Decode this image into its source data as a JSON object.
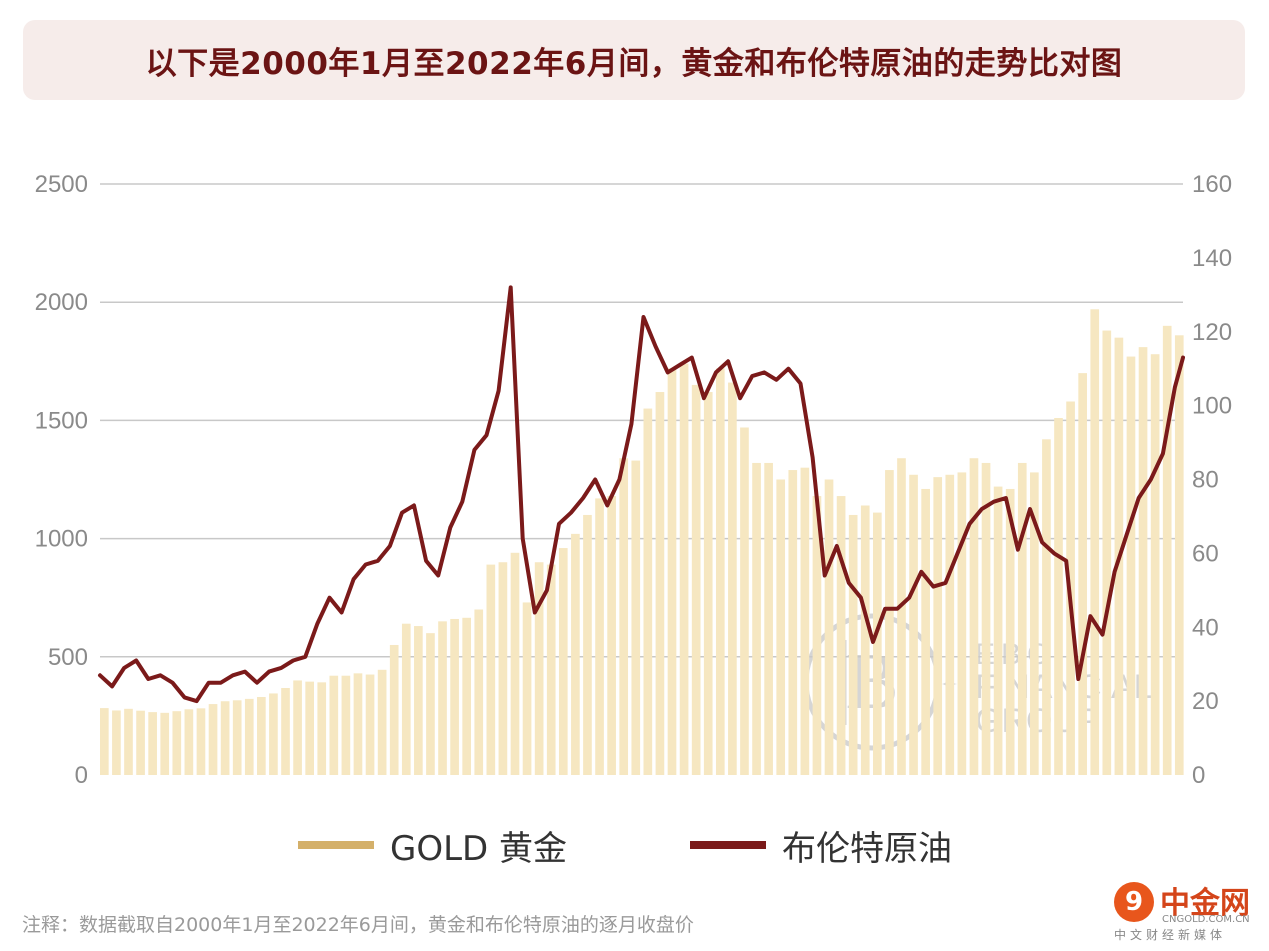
{
  "title": "以下是2000年1月至2022年6月间，黄金和布伦特原油的走势比对图",
  "note": "注释：数据截取自2000年1月至2022年6月间，黄金和布伦特原油的逐月收盘价",
  "watermark": {
    "line1": "EBC",
    "line2": "FINANCIAL",
    "line3": "GROUP"
  },
  "site_logo": {
    "name": "中金网",
    "url": "CNGOLD.COM.CN",
    "tagline": "中文财经新媒体"
  },
  "colors": {
    "gold": "#f6e7c1",
    "gold_legend": "#d4b06a",
    "oil": "#7b1a1a",
    "grid": "#c8c8c8",
    "tick": "#8a8a8a"
  },
  "chart_data": {
    "type": "bar+line",
    "xlim": [
      "2000-01",
      "2022-06"
    ],
    "y_left": {
      "ylim": [
        0,
        2500
      ],
      "ticks": [
        "0",
        "500",
        "1000",
        "1500",
        "2000",
        "2500"
      ]
    },
    "y_right": {
      "ylim": [
        0,
        160
      ],
      "ticks": [
        "0",
        "20",
        "40",
        "60",
        "80",
        "100",
        "120",
        "140",
        "160"
      ]
    },
    "grid": true,
    "legend": {
      "position": "bottom",
      "entries": [
        "GOLD 黄金",
        "布伦特原油"
      ]
    },
    "series": [
      {
        "name": "GOLD 黄金",
        "type": "bar",
        "axis": "left",
        "color": "#f6e7c1",
        "x": [
          "2000-01",
          "2000-04",
          "2000-07",
          "2000-10",
          "2001-01",
          "2001-04",
          "2001-07",
          "2001-10",
          "2002-01",
          "2002-04",
          "2002-07",
          "2002-10",
          "2003-01",
          "2003-04",
          "2003-07",
          "2003-10",
          "2004-01",
          "2004-04",
          "2004-07",
          "2004-10",
          "2005-01",
          "2005-04",
          "2005-07",
          "2005-10",
          "2006-01",
          "2006-04",
          "2006-07",
          "2006-10",
          "2007-01",
          "2007-04",
          "2007-07",
          "2007-10",
          "2008-01",
          "2008-04",
          "2008-07",
          "2008-10",
          "2009-01",
          "2009-04",
          "2009-07",
          "2009-10",
          "2010-01",
          "2010-04",
          "2010-07",
          "2010-10",
          "2011-01",
          "2011-04",
          "2011-07",
          "2011-10",
          "2012-01",
          "2012-04",
          "2012-07",
          "2012-10",
          "2013-01",
          "2013-04",
          "2013-07",
          "2013-10",
          "2014-01",
          "2014-04",
          "2014-07",
          "2014-10",
          "2015-01",
          "2015-04",
          "2015-07",
          "2015-10",
          "2016-01",
          "2016-04",
          "2016-07",
          "2016-10",
          "2017-01",
          "2017-04",
          "2017-07",
          "2017-10",
          "2018-01",
          "2018-04",
          "2018-07",
          "2018-10",
          "2019-01",
          "2019-04",
          "2019-07",
          "2019-10",
          "2020-01",
          "2020-04",
          "2020-07",
          "2020-10",
          "2021-01",
          "2021-04",
          "2021-07",
          "2021-10",
          "2022-01",
          "2022-04"
        ],
        "values": [
          283,
          273,
          280,
          272,
          266,
          263,
          270,
          278,
          282,
          300,
          312,
          316,
          322,
          330,
          345,
          368,
          400,
          395,
          392,
          420,
          420,
          430,
          425,
          445,
          550,
          640,
          630,
          600,
          650,
          660,
          665,
          700,
          890,
          900,
          940,
          730,
          900,
          890,
          960,
          1020,
          1100,
          1170,
          1180,
          1340,
          1330,
          1550,
          1620,
          1720,
          1740,
          1650,
          1620,
          1720,
          1660,
          1470,
          1320,
          1320,
          1250,
          1290,
          1300,
          1180,
          1250,
          1180,
          1100,
          1140,
          1110,
          1290,
          1340,
          1270,
          1210,
          1260,
          1270,
          1280,
          1340,
          1320,
          1220,
          1210,
          1320,
          1280,
          1420,
          1510,
          1580,
          1700,
          1970,
          1880,
          1850,
          1770,
          1810,
          1780,
          1900,
          1860
        ]
      },
      {
        "name": "布伦特原油",
        "type": "line",
        "axis": "right",
        "color": "#7b1a1a",
        "x": [
          "2000-01",
          "2000-04",
          "2000-07",
          "2000-10",
          "2001-01",
          "2001-04",
          "2001-07",
          "2001-10",
          "2002-01",
          "2002-04",
          "2002-07",
          "2002-10",
          "2003-01",
          "2003-04",
          "2003-07",
          "2003-10",
          "2004-01",
          "2004-04",
          "2004-07",
          "2004-10",
          "2005-01",
          "2005-04",
          "2005-07",
          "2005-10",
          "2006-01",
          "2006-04",
          "2006-07",
          "2006-10",
          "2007-01",
          "2007-04",
          "2007-07",
          "2007-10",
          "2008-01",
          "2008-04",
          "2008-07",
          "2008-10",
          "2009-01",
          "2009-04",
          "2009-07",
          "2009-10",
          "2010-01",
          "2010-04",
          "2010-07",
          "2010-10",
          "2011-01",
          "2011-04",
          "2011-07",
          "2011-10",
          "2012-01",
          "2012-04",
          "2012-07",
          "2012-10",
          "2013-01",
          "2013-04",
          "2013-07",
          "2013-10",
          "2014-01",
          "2014-04",
          "2014-07",
          "2014-10",
          "2015-01",
          "2015-04",
          "2015-07",
          "2015-10",
          "2016-01",
          "2016-04",
          "2016-07",
          "2016-10",
          "2017-01",
          "2017-04",
          "2017-07",
          "2017-10",
          "2018-01",
          "2018-04",
          "2018-07",
          "2018-10",
          "2019-01",
          "2019-04",
          "2019-07",
          "2019-10",
          "2020-01",
          "2020-04",
          "2020-07",
          "2020-10",
          "2021-01",
          "2021-04",
          "2021-07",
          "2021-10",
          "2022-01",
          "2022-04",
          "2022-06"
        ],
        "values": [
          27,
          24,
          29,
          31,
          26,
          27,
          25,
          21,
          20,
          25,
          25,
          27,
          28,
          25,
          28,
          29,
          31,
          32,
          41,
          48,
          44,
          53,
          57,
          58,
          62,
          71,
          73,
          58,
          54,
          67,
          74,
          88,
          92,
          104,
          132,
          64,
          44,
          50,
          68,
          71,
          75,
          80,
          73,
          80,
          95,
          124,
          116,
          109,
          111,
          113,
          102,
          109,
          112,
          102,
          108,
          109,
          107,
          110,
          106,
          86,
          54,
          62,
          52,
          48,
          36,
          45,
          45,
          48,
          55,
          51,
          52,
          60,
          68,
          72,
          74,
          75,
          61,
          72,
          63,
          60,
          58,
          26,
          43,
          38,
          55,
          65,
          75,
          80,
          87,
          105,
          113
        ]
      }
    ]
  }
}
